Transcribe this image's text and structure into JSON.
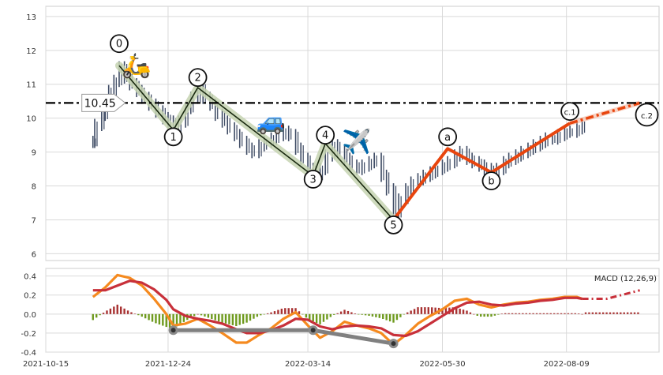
{
  "chart_data": [
    {
      "type": "line",
      "panel": "price",
      "ylim": [
        5.8,
        13.3
      ],
      "y_ticks": [
        6,
        7,
        8,
        9,
        10,
        11,
        12,
        13
      ],
      "x_dates": [
        "2021-10-15",
        "2021-12-24",
        "2022-03-14",
        "2022-05-30",
        "2022-08-09"
      ],
      "grid": true,
      "reference_line": {
        "value": 10.45,
        "label": "10.45",
        "style": "dash-dot",
        "color": "#000000"
      },
      "series": [
        {
          "role": "price bars",
          "color": "#3d4a63",
          "points": [
            [
              "2021-11-11",
              9.3
            ],
            [
              "2021-11-12",
              9.8
            ],
            [
              "2021-11-16",
              10.1
            ],
            [
              "2021-11-18",
              10.5
            ],
            [
              "2021-11-20",
              10.8
            ],
            [
              "2021-11-23",
              11.1
            ],
            [
              "2021-11-26",
              11.5
            ],
            [
              "2021-11-29",
              11.2
            ],
            [
              "2021-12-02",
              11.0
            ],
            [
              "2021-12-06",
              10.8
            ],
            [
              "2021-12-09",
              10.6
            ],
            [
              "2021-12-13",
              10.4
            ],
            [
              "2021-12-17",
              10.2
            ],
            [
              "2021-12-21",
              10.0
            ],
            [
              "2021-12-24",
              9.9
            ],
            [
              "2021-12-27",
              9.7
            ],
            [
              "2021-12-30",
              9.9
            ],
            [
              "2022-01-03",
              10.3
            ],
            [
              "2022-01-06",
              10.6
            ],
            [
              "2022-01-10",
              10.9
            ],
            [
              "2022-01-13",
              10.6
            ],
            [
              "2022-01-17",
              10.4
            ],
            [
              "2022-01-20",
              10.1
            ],
            [
              "2022-01-24",
              9.9
            ],
            [
              "2022-01-27",
              9.7
            ],
            [
              "2022-01-31",
              9.5
            ],
            [
              "2022-02-03",
              9.3
            ],
            [
              "2022-02-07",
              9.1
            ],
            [
              "2022-02-10",
              9.0
            ],
            [
              "2022-02-14",
              9.2
            ],
            [
              "2022-02-17",
              9.3
            ],
            [
              "2022-02-21",
              9.4
            ],
            [
              "2022-02-24",
              9.5
            ],
            [
              "2022-02-28",
              9.6
            ],
            [
              "2022-03-03",
              9.5
            ],
            [
              "2022-03-07",
              9.1
            ],
            [
              "2022-03-10",
              8.8
            ],
            [
              "2022-03-14",
              8.5
            ],
            [
              "2022-03-17",
              8.3
            ],
            [
              "2022-03-21",
              8.5
            ],
            [
              "2022-03-24",
              8.9
            ],
            [
              "2022-03-28",
              9.2
            ],
            [
              "2022-03-31",
              9.0
            ],
            [
              "2022-04-04",
              8.8
            ],
            [
              "2022-04-07",
              8.6
            ],
            [
              "2022-04-11",
              8.5
            ],
            [
              "2022-04-14",
              8.6
            ],
            [
              "2022-04-18",
              8.7
            ],
            [
              "2022-04-21",
              8.8
            ],
            [
              "2022-04-25",
              8.3
            ],
            [
              "2022-04-28",
              7.9
            ],
            [
              "2022-05-02",
              7.2
            ],
            [
              "2022-05-05",
              7.6
            ],
            [
              "2022-05-09",
              7.9
            ],
            [
              "2022-05-12",
              8.1
            ],
            [
              "2022-05-16",
              8.2
            ],
            [
              "2022-05-19",
              8.3
            ],
            [
              "2022-05-23",
              8.4
            ],
            [
              "2022-05-26",
              8.5
            ],
            [
              "2022-05-30",
              8.6
            ],
            [
              "2022-06-02",
              8.7
            ],
            [
              "2022-06-06",
              8.9
            ],
            [
              "2022-06-09",
              9.0
            ],
            [
              "2022-06-13",
              8.8
            ],
            [
              "2022-06-16",
              8.7
            ],
            [
              "2022-06-20",
              8.6
            ],
            [
              "2022-06-23",
              8.5
            ],
            [
              "2022-06-27",
              8.4
            ],
            [
              "2022-06-30",
              8.5
            ],
            [
              "2022-07-04",
              8.7
            ],
            [
              "2022-07-07",
              8.8
            ],
            [
              "2022-07-11",
              8.9
            ],
            [
              "2022-07-14",
              9.0
            ],
            [
              "2022-07-18",
              9.1
            ],
            [
              "2022-07-21",
              9.2
            ],
            [
              "2022-07-25",
              9.3
            ],
            [
              "2022-07-28",
              9.4
            ],
            [
              "2022-08-01",
              9.4
            ],
            [
              "2022-08-04",
              9.5
            ],
            [
              "2022-08-08",
              9.6
            ],
            [
              "2022-08-11",
              9.6
            ],
            [
              "2022-08-15",
              9.7
            ],
            [
              "2022-08-18",
              9.8
            ]
          ]
        },
        {
          "role": "impulse wave",
          "color": "#1a2a10",
          "points": [
            [
              "2021-11-26",
              11.55
            ],
            [
              "2021-12-27",
              9.65
            ],
            [
              "2022-01-10",
              10.9
            ],
            [
              "2022-03-17",
              8.3
            ],
            [
              "2022-03-24",
              9.25
            ],
            [
              "2022-05-02",
              7.0
            ]
          ]
        },
        {
          "role": "corrective wave",
          "color": "#e8450e",
          "points": [
            [
              "2022-05-02",
              7.0
            ],
            [
              "2022-06-02",
              9.1
            ],
            [
              "2022-06-27",
              8.4
            ],
            [
              "2022-08-11",
              9.85
            ]
          ]
        },
        {
          "role": "projection",
          "color": "#e8450e",
          "points": [
            [
              "2022-08-11",
              9.85
            ],
            [
              "2022-09-20",
              10.45
            ]
          ]
        }
      ],
      "wave_labels": [
        {
          "text": "0",
          "x": "2021-11-26",
          "y": 12.2
        },
        {
          "text": "1",
          "x": "2021-12-27",
          "y": 9.45
        },
        {
          "text": "2",
          "x": "2022-01-10",
          "y": 11.2
        },
        {
          "text": "3",
          "x": "2022-03-17",
          "y": 8.2
        },
        {
          "text": "4",
          "x": "2022-03-24",
          "y": 9.5
        },
        {
          "text": "5",
          "x": "2022-05-02",
          "y": 6.85
        },
        {
          "text": "a",
          "x": "2022-06-02",
          "y": 9.45
        },
        {
          "text": "b",
          "x": "2022-06-27",
          "y": 8.15
        },
        {
          "text": "c.1",
          "x": "2022-08-11",
          "y": 10.2
        },
        {
          "text": "c.2",
          "x": "2022-09-24",
          "y": 10.1
        }
      ],
      "markers": [
        {
          "icon": "scooter-icon",
          "glyph": "🛵",
          "x": "2021-12-06",
          "y": 11.6
        },
        {
          "icon": "car-icon",
          "glyph": "🚙",
          "x": "2022-02-21",
          "y": 9.95
        },
        {
          "icon": "airplane-icon",
          "glyph": "✈️",
          "x": "2022-04-11",
          "y": 9.35
        }
      ]
    },
    {
      "type": "line",
      "panel": "macd",
      "title": "MACD (12,26,9)",
      "ylim": [
        -0.4,
        0.48
      ],
      "y_ticks": [
        -0.4,
        -0.2,
        0.0,
        0.2,
        0.4
      ],
      "x_ticks": [
        "2021-10-15",
        "2021-12-24",
        "2022-03-14",
        "2022-05-30",
        "2022-08-09"
      ],
      "grid": true,
      "series": [
        {
          "role": "macd line",
          "color": "#f58a1f",
          "points": [
            [
              "2021-11-11",
              0.18
            ],
            [
              "2021-11-18",
              0.28
            ],
            [
              "2021-11-25",
              0.41
            ],
            [
              "2021-12-02",
              0.38
            ],
            [
              "2021-12-09",
              0.3
            ],
            [
              "2021-12-16",
              0.16
            ],
            [
              "2021-12-23",
              0.0
            ],
            [
              "2021-12-27",
              -0.12
            ],
            [
              "2022-01-03",
              -0.1
            ],
            [
              "2022-01-10",
              -0.05
            ],
            [
              "2022-01-17",
              -0.12
            ],
            [
              "2022-01-24",
              -0.2
            ],
            [
              "2022-02-01",
              -0.3
            ],
            [
              "2022-02-07",
              -0.3
            ],
            [
              "2022-02-14",
              -0.22
            ],
            [
              "2022-02-21",
              -0.15
            ],
            [
              "2022-02-28",
              -0.05
            ],
            [
              "2022-03-07",
              0.02
            ],
            [
              "2022-03-14",
              -0.12
            ],
            [
              "2022-03-21",
              -0.25
            ],
            [
              "2022-03-28",
              -0.18
            ],
            [
              "2022-04-04",
              -0.08
            ],
            [
              "2022-04-11",
              -0.12
            ],
            [
              "2022-04-18",
              -0.15
            ],
            [
              "2022-04-25",
              -0.2
            ],
            [
              "2022-05-02",
              -0.32
            ],
            [
              "2022-05-09",
              -0.22
            ],
            [
              "2022-05-16",
              -0.1
            ],
            [
              "2022-05-23",
              -0.02
            ],
            [
              "2022-05-30",
              0.05
            ],
            [
              "2022-06-06",
              0.14
            ],
            [
              "2022-06-13",
              0.16
            ],
            [
              "2022-06-20",
              0.1
            ],
            [
              "2022-06-27",
              0.07
            ],
            [
              "2022-07-04",
              0.1
            ],
            [
              "2022-07-11",
              0.12
            ],
            [
              "2022-07-18",
              0.13
            ],
            [
              "2022-07-25",
              0.15
            ],
            [
              "2022-08-01",
              0.16
            ],
            [
              "2022-08-08",
              0.18
            ],
            [
              "2022-08-15",
              0.18
            ],
            [
              "2022-08-18",
              0.16
            ]
          ]
        },
        {
          "role": "signal line",
          "color": "#c8303a",
          "points": [
            [
              "2021-11-11",
              0.25
            ],
            [
              "2021-11-18",
              0.25
            ],
            [
              "2021-11-25",
              0.3
            ],
            [
              "2021-12-02",
              0.35
            ],
            [
              "2021-12-09",
              0.33
            ],
            [
              "2021-12-16",
              0.26
            ],
            [
              "2021-12-23",
              0.15
            ],
            [
              "2021-12-27",
              0.05
            ],
            [
              "2022-01-03",
              -0.02
            ],
            [
              "2022-01-10",
              -0.05
            ],
            [
              "2022-01-17",
              -0.07
            ],
            [
              "2022-01-24",
              -0.1
            ],
            [
              "2022-02-01",
              -0.16
            ],
            [
              "2022-02-07",
              -0.2
            ],
            [
              "2022-02-14",
              -0.2
            ],
            [
              "2022-02-21",
              -0.17
            ],
            [
              "2022-02-28",
              -0.12
            ],
            [
              "2022-03-07",
              -0.05
            ],
            [
              "2022-03-14",
              -0.06
            ],
            [
              "2022-03-21",
              -0.13
            ],
            [
              "2022-03-28",
              -0.16
            ],
            [
              "2022-04-04",
              -0.13
            ],
            [
              "2022-04-11",
              -0.12
            ],
            [
              "2022-04-18",
              -0.13
            ],
            [
              "2022-04-25",
              -0.15
            ],
            [
              "2022-05-02",
              -0.22
            ],
            [
              "2022-05-09",
              -0.23
            ],
            [
              "2022-05-16",
              -0.18
            ],
            [
              "2022-05-23",
              -0.1
            ],
            [
              "2022-05-30",
              -0.02
            ],
            [
              "2022-06-06",
              0.06
            ],
            [
              "2022-06-13",
              0.12
            ],
            [
              "2022-06-20",
              0.13
            ],
            [
              "2022-06-27",
              0.1
            ],
            [
              "2022-07-04",
              0.09
            ],
            [
              "2022-07-11",
              0.11
            ],
            [
              "2022-07-18",
              0.12
            ],
            [
              "2022-07-25",
              0.14
            ],
            [
              "2022-08-01",
              0.15
            ],
            [
              "2022-08-08",
              0.17
            ],
            [
              "2022-08-15",
              0.17
            ],
            [
              "2022-08-18",
              0.16
            ]
          ]
        },
        {
          "role": "divergence line",
          "color": "#808080",
          "points": [
            [
              "2021-12-27",
              -0.17
            ],
            [
              "2022-03-17",
              -0.17
            ],
            [
              "2022-05-02",
              -0.31
            ]
          ]
        },
        {
          "role": "projection",
          "color": "#c8303a",
          "points": [
            [
              "2022-08-18",
              0.16
            ],
            [
              "2022-09-01",
              0.16
            ],
            [
              "2022-09-20",
              0.25
            ]
          ]
        }
      ]
    }
  ]
}
